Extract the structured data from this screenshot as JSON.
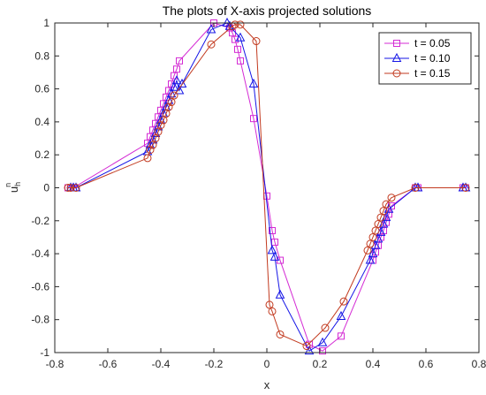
{
  "chart_data": {
    "type": "line",
    "title": "The plots of X-axis projected solutions",
    "xlabel": "x",
    "ylabel_base": "u",
    "ylabel_sub": "h",
    "ylabel_sup": "n",
    "xlim": [
      -0.8,
      0.8
    ],
    "ylim": [
      -1,
      1
    ],
    "xticks": [
      -0.8,
      -0.6,
      -0.4,
      -0.2,
      0,
      0.2,
      0.4,
      0.6,
      0.8
    ],
    "yticks": [
      -1,
      -0.8,
      -0.6,
      -0.4,
      -0.2,
      0,
      0.2,
      0.4,
      0.6,
      0.8,
      1
    ],
    "xtick_labels": [
      "-0.8",
      "-0.6",
      "-0.4",
      "-0.2",
      "0",
      "0.2",
      "0.4",
      "0.6",
      "0.8"
    ],
    "ytick_labels": [
      "-1",
      "-0.8",
      "-0.6",
      "-0.4",
      "-0.2",
      "0",
      "0.2",
      "0.4",
      "0.6",
      "0.8",
      "1"
    ],
    "grid": false,
    "legend_position": "top-right",
    "series": [
      {
        "name": "t = 0.05",
        "color": "#d42bd4",
        "marker": "square",
        "x": [
          -0.75,
          -0.74,
          -0.73,
          -0.45,
          -0.44,
          -0.43,
          -0.42,
          -0.41,
          -0.4,
          -0.39,
          -0.38,
          -0.37,
          -0.36,
          -0.35,
          -0.34,
          -0.33,
          -0.2,
          -0.14,
          -0.13,
          -0.12,
          -0.11,
          -0.1,
          -0.05,
          0.0,
          0.02,
          0.03,
          0.05,
          0.16,
          0.21,
          0.28,
          0.4,
          0.41,
          0.42,
          0.43,
          0.44,
          0.45,
          0.46,
          0.47,
          0.56,
          0.57,
          0.74,
          0.75
        ],
        "y": [
          0.0,
          0.0,
          0.0,
          0.27,
          0.31,
          0.35,
          0.39,
          0.43,
          0.47,
          0.51,
          0.55,
          0.59,
          0.63,
          0.68,
          0.72,
          0.77,
          1.0,
          0.97,
          0.94,
          0.9,
          0.84,
          0.77,
          0.42,
          -0.05,
          -0.26,
          -0.33,
          -0.44,
          -0.95,
          -0.99,
          -0.9,
          -0.44,
          -0.39,
          -0.35,
          -0.3,
          -0.26,
          -0.21,
          -0.16,
          -0.11,
          0.0,
          0.0,
          0.0,
          0.0
        ]
      },
      {
        "name": "t = 0.10",
        "color": "#1515e6",
        "marker": "triangle",
        "x": [
          -0.74,
          -0.73,
          -0.72,
          -0.45,
          -0.44,
          -0.43,
          -0.42,
          -0.41,
          -0.4,
          -0.39,
          -0.38,
          -0.37,
          -0.36,
          -0.35,
          -0.34,
          -0.33,
          -0.32,
          -0.21,
          -0.15,
          -0.14,
          -0.1,
          -0.05,
          0.02,
          0.03,
          0.05,
          0.16,
          0.21,
          0.28,
          0.39,
          0.4,
          0.41,
          0.42,
          0.43,
          0.44,
          0.45,
          0.46,
          0.56,
          0.57,
          0.74,
          0.75
        ],
        "y": [
          0.0,
          0.0,
          0.0,
          0.22,
          0.26,
          0.29,
          0.33,
          0.37,
          0.41,
          0.45,
          0.49,
          0.53,
          0.57,
          0.61,
          0.65,
          0.59,
          0.63,
          0.96,
          1.0,
          0.98,
          0.91,
          0.63,
          -0.38,
          -0.42,
          -0.65,
          -0.99,
          -0.94,
          -0.78,
          -0.44,
          -0.4,
          -0.35,
          -0.31,
          -0.27,
          -0.22,
          -0.18,
          -0.13,
          0.0,
          0.0,
          0.0,
          0.0
        ]
      },
      {
        "name": "t = 0.15",
        "color": "#c23a1f",
        "marker": "circle",
        "x": [
          -0.75,
          -0.74,
          -0.72,
          -0.45,
          -0.44,
          -0.43,
          -0.42,
          -0.41,
          -0.4,
          -0.39,
          -0.38,
          -0.37,
          -0.36,
          -0.35,
          -0.21,
          -0.13,
          -0.12,
          -0.1,
          -0.04,
          0.01,
          0.02,
          0.05,
          0.15,
          0.22,
          0.29,
          0.38,
          0.39,
          0.4,
          0.41,
          0.42,
          0.43,
          0.44,
          0.45,
          0.47,
          0.56,
          0.75
        ],
        "y": [
          0.0,
          0.0,
          0.0,
          0.18,
          0.23,
          0.26,
          0.3,
          0.34,
          0.38,
          0.41,
          0.45,
          0.49,
          0.52,
          0.56,
          0.87,
          0.98,
          0.99,
          0.99,
          0.89,
          -0.71,
          -0.75,
          -0.89,
          -0.96,
          -0.85,
          -0.69,
          -0.38,
          -0.34,
          -0.3,
          -0.26,
          -0.22,
          -0.18,
          -0.14,
          -0.1,
          -0.06,
          0.0,
          0.0
        ]
      }
    ]
  }
}
